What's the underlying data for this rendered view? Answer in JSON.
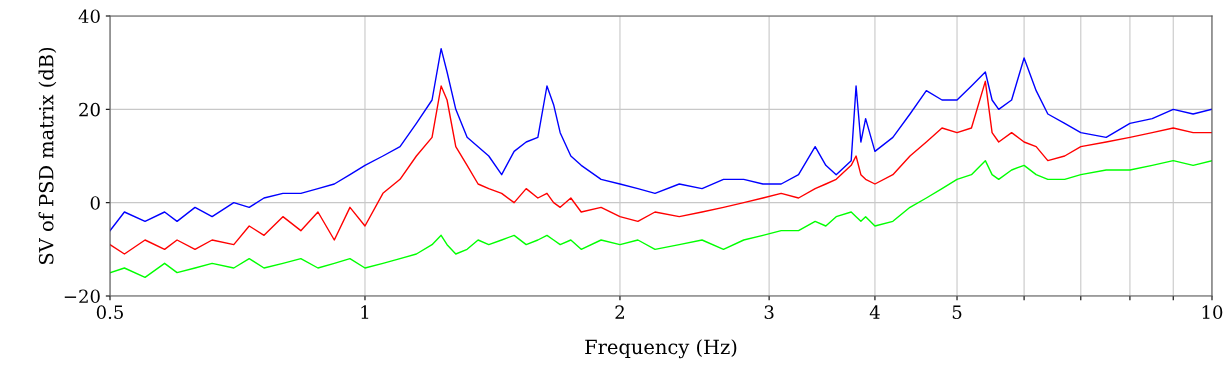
{
  "chart_data": {
    "type": "line",
    "xlabel": "Frequency (Hz)",
    "ylabel": "SV of PSD matrix (dB)",
    "log": "x",
    "grid": true,
    "marker": "none",
    "line_style": "solid",
    "xlim": [
      0.5,
      10
    ],
    "xticks": [
      0.5,
      1,
      2,
      3,
      4,
      5,
      {
        "value": 6,
        "label": null
      },
      {
        "value": 7,
        "label": null
      },
      {
        "value": 8,
        "label": null
      },
      {
        "value": 9,
        "label": null
      },
      10
    ],
    "ylim": [
      -20,
      40
    ],
    "yticks": [
      {
        "value": -20,
        "label": "−20"
      },
      0,
      20,
      40
    ],
    "x": [
      0.5,
      0.52,
      0.55,
      0.58,
      0.6,
      0.63,
      0.66,
      0.7,
      0.73,
      0.76,
      0.8,
      0.84,
      0.88,
      0.92,
      0.96,
      1.0,
      1.05,
      1.1,
      1.15,
      1.2,
      1.23,
      1.25,
      1.28,
      1.32,
      1.36,
      1.4,
      1.45,
      1.5,
      1.55,
      1.6,
      1.64,
      1.67,
      1.7,
      1.75,
      1.8,
      1.9,
      2.0,
      2.1,
      2.2,
      2.35,
      2.5,
      2.65,
      2.8,
      2.95,
      3.1,
      3.25,
      3.4,
      3.5,
      3.6,
      3.75,
      3.8,
      3.85,
      3.9,
      4.0,
      4.2,
      4.4,
      4.6,
      4.8,
      5.0,
      5.2,
      5.4,
      5.5,
      5.6,
      5.8,
      6.0,
      6.2,
      6.4,
      6.7,
      7.0,
      7.5,
      8.0,
      8.5,
      9.0,
      9.5,
      10.0
    ],
    "series": [
      {
        "color": "#0000ff",
        "values": [
          -6,
          -2,
          -4,
          -2,
          -4,
          -1,
          -3,
          0,
          -1,
          1,
          2,
          2,
          3,
          4,
          6,
          8,
          10,
          12,
          17,
          22,
          33,
          28,
          20,
          14,
          12,
          10,
          6,
          11,
          13,
          14,
          25,
          21,
          15,
          10,
          8,
          5,
          4,
          3,
          2,
          4,
          3,
          5,
          5,
          4,
          4,
          6,
          12,
          8,
          6,
          9,
          25,
          13,
          18,
          11,
          14,
          19,
          24,
          22,
          22,
          25,
          28,
          22,
          20,
          22,
          31,
          24,
          19,
          17,
          15,
          14,
          17,
          18,
          20,
          19,
          20
        ]
      },
      {
        "color": "#ff0000",
        "values": [
          -9,
          -11,
          -8,
          -10,
          -8,
          -10,
          -8,
          -9,
          -5,
          -7,
          -3,
          -6,
          -2,
          -8,
          -1,
          -5,
          2,
          5,
          10,
          14,
          25,
          22,
          12,
          8,
          4,
          3,
          2,
          0,
          3,
          1,
          2,
          0,
          -1,
          1,
          -2,
          -1,
          -3,
          -4,
          -2,
          -3,
          -2,
          -1,
          0,
          1,
          2,
          1,
          3,
          4,
          5,
          8,
          10,
          6,
          5,
          4,
          6,
          10,
          13,
          16,
          15,
          16,
          26,
          15,
          13,
          15,
          13,
          12,
          9,
          10,
          12,
          13,
          14,
          15,
          16,
          15,
          15
        ]
      },
      {
        "color": "#00ff00",
        "values": [
          -15,
          -14,
          -16,
          -13,
          -15,
          -14,
          -13,
          -14,
          -12,
          -14,
          -13,
          -12,
          -14,
          -13,
          -12,
          -14,
          -13,
          -12,
          -11,
          -9,
          -7,
          -9,
          -11,
          -10,
          -8,
          -9,
          -8,
          -7,
          -9,
          -8,
          -7,
          -8,
          -9,
          -8,
          -10,
          -8,
          -9,
          -8,
          -10,
          -9,
          -8,
          -10,
          -8,
          -7,
          -6,
          -6,
          -4,
          -5,
          -3,
          -2,
          -3,
          -4,
          -3,
          -5,
          -4,
          -1,
          1,
          3,
          5,
          6,
          9,
          6,
          5,
          7,
          8,
          6,
          5,
          5,
          6,
          7,
          7,
          8,
          9,
          8,
          9
        ]
      }
    ]
  }
}
